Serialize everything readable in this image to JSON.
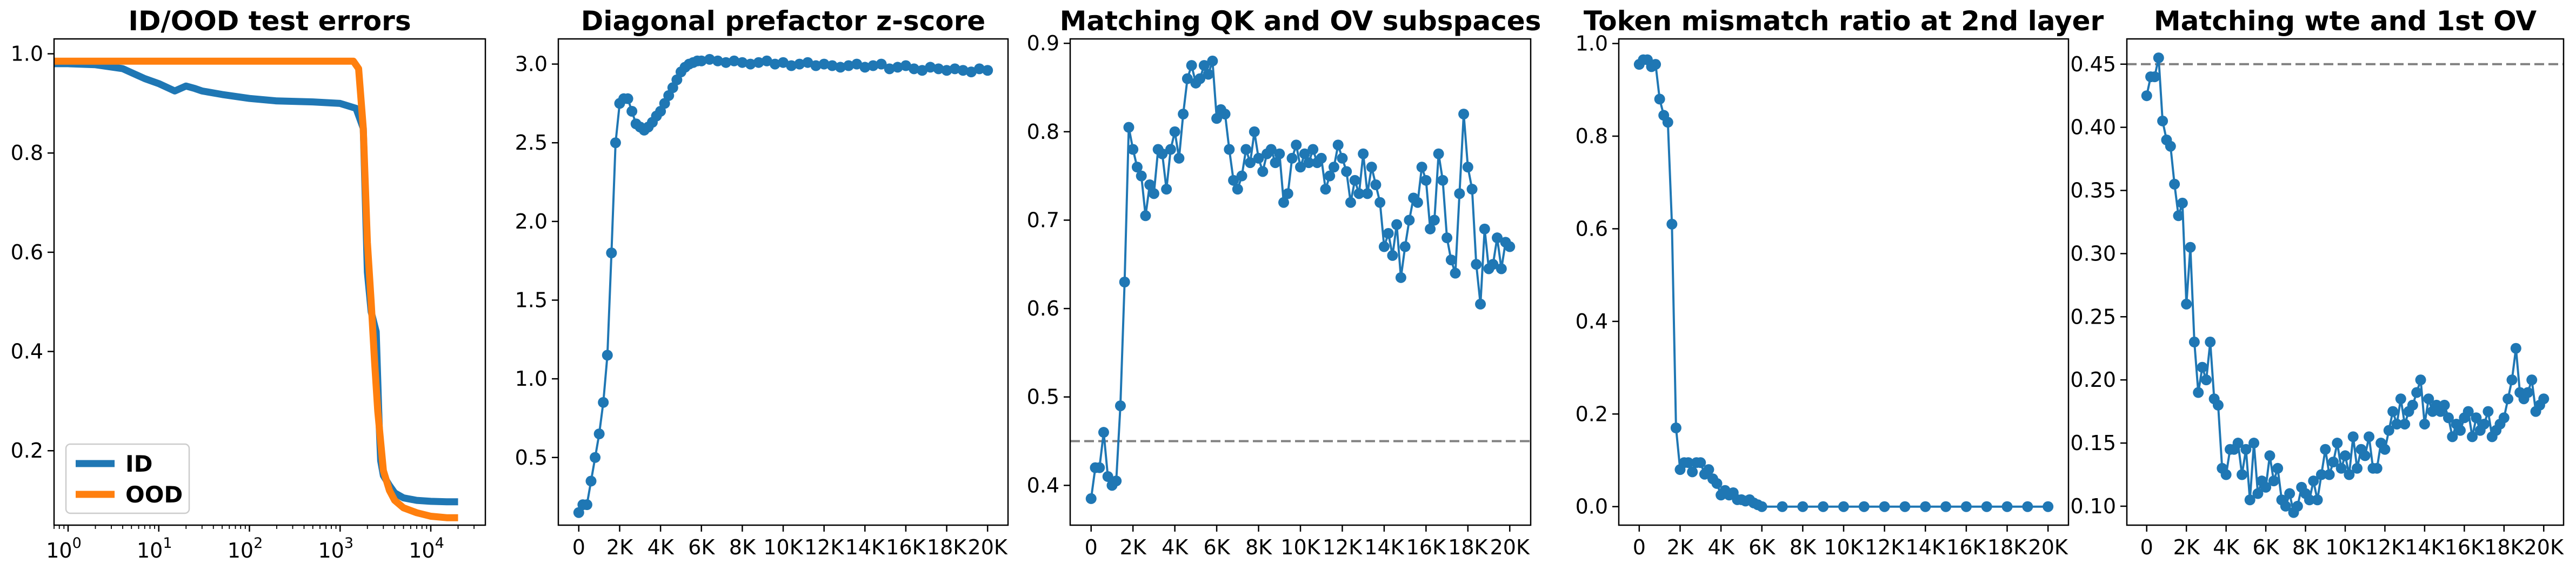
{
  "chart_data": [
    {
      "type": "line",
      "title": "ID/OOD test errors",
      "x_scale": "log",
      "xlim": [
        0.7,
        40000
      ],
      "ylim": [
        0.05,
        1.03
      ],
      "x_ticks": [
        1,
        10,
        100,
        1000,
        10000
      ],
      "x_tick_labels": [
        {
          "base": "10",
          "exp": "0"
        },
        {
          "base": "10",
          "exp": "1"
        },
        {
          "base": "10",
          "exp": "2"
        },
        {
          "base": "10",
          "exp": "3"
        },
        {
          "base": "10",
          "exp": "4"
        }
      ],
      "y_ticks": [
        0.2,
        0.4,
        0.6,
        0.8,
        1.0
      ],
      "y_tick_labels": [
        "0.2",
        "0.4",
        "0.6",
        "0.8",
        "1.0"
      ],
      "legend": {
        "placement": "lower-left",
        "entries": [
          "ID",
          "OOD"
        ]
      },
      "series": [
        {
          "name": "ID",
          "color": "#1f77b4",
          "markers": false,
          "x": [
            0.7,
            1,
            2,
            4,
            7,
            10,
            15,
            20,
            25,
            30,
            50,
            100,
            200,
            500,
            1000,
            1500,
            1800,
            2000,
            2200,
            2500,
            2700,
            2800,
            3000,
            3500,
            4000,
            5000,
            7000,
            10000,
            15000,
            20000
          ],
          "y": [
            0.98,
            0.98,
            0.978,
            0.97,
            0.95,
            0.94,
            0.925,
            0.935,
            0.93,
            0.925,
            0.918,
            0.91,
            0.905,
            0.903,
            0.9,
            0.89,
            0.85,
            0.56,
            0.48,
            0.44,
            0.25,
            0.18,
            0.15,
            0.13,
            0.115,
            0.105,
            0.1,
            0.098,
            0.097,
            0.097
          ]
        },
        {
          "name": "OOD",
          "color": "#ff7f0e",
          "markers": false,
          "x": [
            0.7,
            1,
            10,
            100,
            1000,
            1400,
            1600,
            1800,
            2000,
            2200,
            2400,
            2600,
            3000,
            3500,
            4000,
            5000,
            7000,
            10000,
            15000,
            20000
          ],
          "y": [
            0.985,
            0.985,
            0.985,
            0.985,
            0.985,
            0.985,
            0.97,
            0.85,
            0.62,
            0.5,
            0.38,
            0.28,
            0.16,
            0.12,
            0.1,
            0.085,
            0.075,
            0.068,
            0.065,
            0.065
          ]
        }
      ]
    },
    {
      "type": "line",
      "title": "Diagonal prefactor z-score",
      "x_scale": "linear",
      "xlim": [
        -1000,
        21000
      ],
      "ylim": [
        0.07,
        3.16
      ],
      "x_ticks": [
        0,
        2000,
        4000,
        6000,
        8000,
        10000,
        12000,
        14000,
        16000,
        18000,
        20000
      ],
      "x_tick_labels": [
        "0",
        "2K",
        "4K",
        "6K",
        "8K",
        "10K",
        "12K",
        "14K",
        "16K",
        "18K",
        "20K"
      ],
      "y_ticks": [
        0.5,
        1.0,
        1.5,
        2.0,
        2.5,
        3.0
      ],
      "y_tick_labels": [
        "0.5",
        "1.0",
        "1.5",
        "2.0",
        "2.5",
        "3.0"
      ],
      "series": [
        {
          "color": "#1f77b4",
          "markers": true,
          "x": [
            0,
            200,
            400,
            600,
            800,
            1000,
            1200,
            1400,
            1600,
            1800,
            2000,
            2200,
            2400,
            2600,
            2800,
            3000,
            3200,
            3400,
            3600,
            3800,
            4000,
            4200,
            4400,
            4600,
            4800,
            5000,
            5200,
            5400,
            5600,
            5800,
            6000,
            6400,
            6800,
            7200,
            7600,
            8000,
            8400,
            8800,
            9200,
            9600,
            10000,
            10400,
            10800,
            11200,
            11600,
            12000,
            12400,
            12800,
            13200,
            13600,
            14000,
            14400,
            14800,
            15200,
            15600,
            16000,
            16400,
            16800,
            17200,
            17600,
            18000,
            18400,
            18800,
            19200,
            19600,
            20000
          ],
          "y": [
            0.15,
            0.2,
            0.2,
            0.35,
            0.5,
            0.65,
            0.85,
            1.15,
            1.8,
            2.5,
            2.75,
            2.78,
            2.78,
            2.7,
            2.62,
            2.6,
            2.58,
            2.6,
            2.63,
            2.67,
            2.7,
            2.75,
            2.8,
            2.85,
            2.9,
            2.95,
            2.98,
            3.0,
            3.01,
            3.02,
            3.02,
            3.03,
            3.02,
            3.01,
            3.02,
            3.01,
            3.0,
            3.01,
            3.02,
            3.0,
            3.01,
            2.99,
            3.0,
            3.01,
            2.99,
            3.0,
            2.99,
            2.98,
            2.99,
            3.0,
            2.98,
            2.99,
            3.0,
            2.97,
            2.98,
            2.99,
            2.97,
            2.96,
            2.98,
            2.97,
            2.96,
            2.97,
            2.96,
            2.95,
            2.97,
            2.96
          ]
        }
      ]
    },
    {
      "type": "line",
      "title": "Matching QK and OV subspaces",
      "x_scale": "linear",
      "xlim": [
        -1000,
        21000
      ],
      "ylim": [
        0.355,
        0.905
      ],
      "x_ticks": [
        0,
        2000,
        4000,
        6000,
        8000,
        10000,
        12000,
        14000,
        16000,
        18000,
        20000
      ],
      "x_tick_labels": [
        "0",
        "2K",
        "4K",
        "6K",
        "8K",
        "10K",
        "12K",
        "14K",
        "16K",
        "18K",
        "20K"
      ],
      "y_ticks": [
        0.4,
        0.5,
        0.6,
        0.7,
        0.8,
        0.9
      ],
      "y_tick_labels": [
        "0.4",
        "0.5",
        "0.6",
        "0.7",
        "0.8",
        "0.9"
      ],
      "hline": 0.45,
      "series": [
        {
          "color": "#1f77b4",
          "markers": true,
          "x": [
            0,
            200,
            400,
            600,
            800,
            1000,
            1200,
            1400,
            1600,
            1800,
            2000,
            2200,
            2400,
            2600,
            2800,
            3000,
            3200,
            3400,
            3600,
            3800,
            4000,
            4200,
            4400,
            4600,
            4800,
            5000,
            5200,
            5400,
            5600,
            5800,
            6000,
            6200,
            6400,
            6600,
            6800,
            7000,
            7200,
            7400,
            7600,
            7800,
            8000,
            8200,
            8400,
            8600,
            8800,
            9000,
            9200,
            9400,
            9600,
            9800,
            10000,
            10200,
            10400,
            10600,
            10800,
            11000,
            11200,
            11400,
            11600,
            11800,
            12000,
            12200,
            12400,
            12600,
            12800,
            13000,
            13200,
            13400,
            13600,
            13800,
            14000,
            14200,
            14400,
            14600,
            14800,
            15000,
            15200,
            15400,
            15600,
            15800,
            16000,
            16200,
            16400,
            16600,
            16800,
            17000,
            17200,
            17400,
            17600,
            17800,
            18000,
            18200,
            18400,
            18600,
            18800,
            19000,
            19200,
            19400,
            19600,
            19800,
            20000
          ],
          "y": [
            0.385,
            0.42,
            0.42,
            0.46,
            0.41,
            0.4,
            0.405,
            0.49,
            0.63,
            0.805,
            0.78,
            0.76,
            0.75,
            0.705,
            0.74,
            0.73,
            0.78,
            0.775,
            0.735,
            0.78,
            0.8,
            0.77,
            0.82,
            0.86,
            0.875,
            0.855,
            0.86,
            0.875,
            0.865,
            0.88,
            0.815,
            0.825,
            0.82,
            0.78,
            0.745,
            0.735,
            0.75,
            0.78,
            0.765,
            0.8,
            0.77,
            0.755,
            0.775,
            0.78,
            0.765,
            0.775,
            0.72,
            0.73,
            0.77,
            0.785,
            0.76,
            0.775,
            0.765,
            0.78,
            0.765,
            0.77,
            0.735,
            0.75,
            0.76,
            0.785,
            0.77,
            0.755,
            0.72,
            0.745,
            0.73,
            0.775,
            0.73,
            0.76,
            0.74,
            0.72,
            0.67,
            0.685,
            0.66,
            0.695,
            0.635,
            0.67,
            0.7,
            0.725,
            0.72,
            0.76,
            0.745,
            0.69,
            0.7,
            0.775,
            0.745,
            0.68,
            0.655,
            0.64,
            0.73,
            0.82,
            0.76,
            0.735,
            0.65,
            0.605,
            0.69,
            0.645,
            0.65,
            0.68,
            0.645,
            0.675,
            0.67
          ]
        }
      ]
    },
    {
      "type": "line",
      "title": "Token mismatch ratio at 2nd layer",
      "x_scale": "linear",
      "xlim": [
        -1000,
        21000
      ],
      "ylim": [
        -0.04,
        1.01
      ],
      "x_ticks": [
        0,
        2000,
        4000,
        6000,
        8000,
        10000,
        12000,
        14000,
        16000,
        18000,
        20000
      ],
      "x_tick_labels": [
        "0",
        "2K",
        "4K",
        "6K",
        "8K",
        "10K",
        "12K",
        "14K",
        "16K",
        "18K",
        "20K"
      ],
      "y_ticks": [
        0.0,
        0.2,
        0.4,
        0.6,
        0.8,
        1.0
      ],
      "y_tick_labels": [
        "0.0",
        "0.2",
        "0.4",
        "0.6",
        "0.8",
        "1.0"
      ],
      "series": [
        {
          "color": "#1f77b4",
          "markers": true,
          "x": [
            0,
            200,
            400,
            600,
            800,
            1000,
            1200,
            1400,
            1600,
            1800,
            2000,
            2200,
            2400,
            2600,
            2800,
            3000,
            3200,
            3400,
            3600,
            3800,
            4000,
            4200,
            4400,
            4600,
            4800,
            5000,
            5200,
            5400,
            5600,
            5800,
            6000,
            7000,
            8000,
            9000,
            10000,
            11000,
            12000,
            13000,
            14000,
            15000,
            16000,
            17000,
            18000,
            19000,
            20000
          ],
          "y": [
            0.955,
            0.965,
            0.965,
            0.95,
            0.955,
            0.88,
            0.845,
            0.83,
            0.61,
            0.17,
            0.08,
            0.095,
            0.095,
            0.075,
            0.095,
            0.095,
            0.07,
            0.08,
            0.06,
            0.05,
            0.025,
            0.035,
            0.025,
            0.03,
            0.015,
            0.015,
            0.012,
            0.015,
            0.008,
            0.004,
            0.0,
            0.0,
            0.0,
            0.0,
            0.0,
            0.0,
            0.0,
            0.0,
            0.0,
            0.0,
            0.0,
            0.0,
            0.0,
            0.0,
            0.0
          ]
        }
      ]
    },
    {
      "type": "line",
      "title": "Matching wte and 1st OV",
      "x_scale": "linear",
      "xlim": [
        -1000,
        21000
      ],
      "ylim": [
        0.085,
        0.47
      ],
      "x_ticks": [
        0,
        2000,
        4000,
        6000,
        8000,
        10000,
        12000,
        14000,
        16000,
        18000,
        20000
      ],
      "x_tick_labels": [
        "0",
        "2K",
        "4K",
        "6K",
        "8K",
        "10K",
        "12K",
        "14K",
        "16K",
        "18K",
        "20K"
      ],
      "y_ticks": [
        0.1,
        0.15,
        0.2,
        0.25,
        0.3,
        0.35,
        0.4,
        0.45
      ],
      "y_tick_labels": [
        "0.10",
        "0.15",
        "0.20",
        "0.25",
        "0.30",
        "0.35",
        "0.40",
        "0.45"
      ],
      "hline": 0.45,
      "series": [
        {
          "color": "#1f77b4",
          "markers": true,
          "x": [
            0,
            200,
            400,
            600,
            800,
            1000,
            1200,
            1400,
            1600,
            1800,
            2000,
            2200,
            2400,
            2600,
            2800,
            3000,
            3200,
            3400,
            3600,
            3800,
            4000,
            4200,
            4400,
            4600,
            4800,
            5000,
            5200,
            5400,
            5600,
            5800,
            6000,
            6200,
            6400,
            6600,
            6800,
            7000,
            7200,
            7400,
            7600,
            7800,
            8000,
            8200,
            8400,
            8600,
            8800,
            9000,
            9200,
            9400,
            9600,
            9800,
            10000,
            10200,
            10400,
            10600,
            10800,
            11000,
            11200,
            11400,
            11600,
            11800,
            12000,
            12200,
            12400,
            12600,
            12800,
            13000,
            13200,
            13400,
            13600,
            13800,
            14000,
            14200,
            14400,
            14600,
            14800,
            15000,
            15200,
            15400,
            15600,
            15800,
            16000,
            16200,
            16400,
            16600,
            16800,
            17000,
            17200,
            17400,
            17600,
            17800,
            18000,
            18200,
            18400,
            18600,
            18800,
            19000,
            19200,
            19400,
            19600,
            19800,
            20000
          ],
          "y": [
            0.425,
            0.44,
            0.44,
            0.455,
            0.405,
            0.39,
            0.385,
            0.355,
            0.33,
            0.34,
            0.26,
            0.305,
            0.23,
            0.19,
            0.21,
            0.2,
            0.23,
            0.185,
            0.18,
            0.13,
            0.125,
            0.145,
            0.145,
            0.15,
            0.125,
            0.145,
            0.105,
            0.15,
            0.11,
            0.12,
            0.115,
            0.14,
            0.12,
            0.13,
            0.105,
            0.1,
            0.11,
            0.095,
            0.1,
            0.115,
            0.11,
            0.105,
            0.12,
            0.105,
            0.125,
            0.145,
            0.125,
            0.135,
            0.15,
            0.13,
            0.14,
            0.125,
            0.155,
            0.13,
            0.145,
            0.14,
            0.155,
            0.13,
            0.13,
            0.15,
            0.145,
            0.16,
            0.175,
            0.165,
            0.185,
            0.165,
            0.175,
            0.18,
            0.19,
            0.2,
            0.165,
            0.185,
            0.175,
            0.18,
            0.175,
            0.18,
            0.17,
            0.155,
            0.165,
            0.16,
            0.17,
            0.175,
            0.155,
            0.17,
            0.16,
            0.165,
            0.175,
            0.155,
            0.16,
            0.165,
            0.17,
            0.185,
            0.2,
            0.225,
            0.19,
            0.185,
            0.19,
            0.2,
            0.175,
            0.18,
            0.185
          ]
        }
      ]
    }
  ]
}
